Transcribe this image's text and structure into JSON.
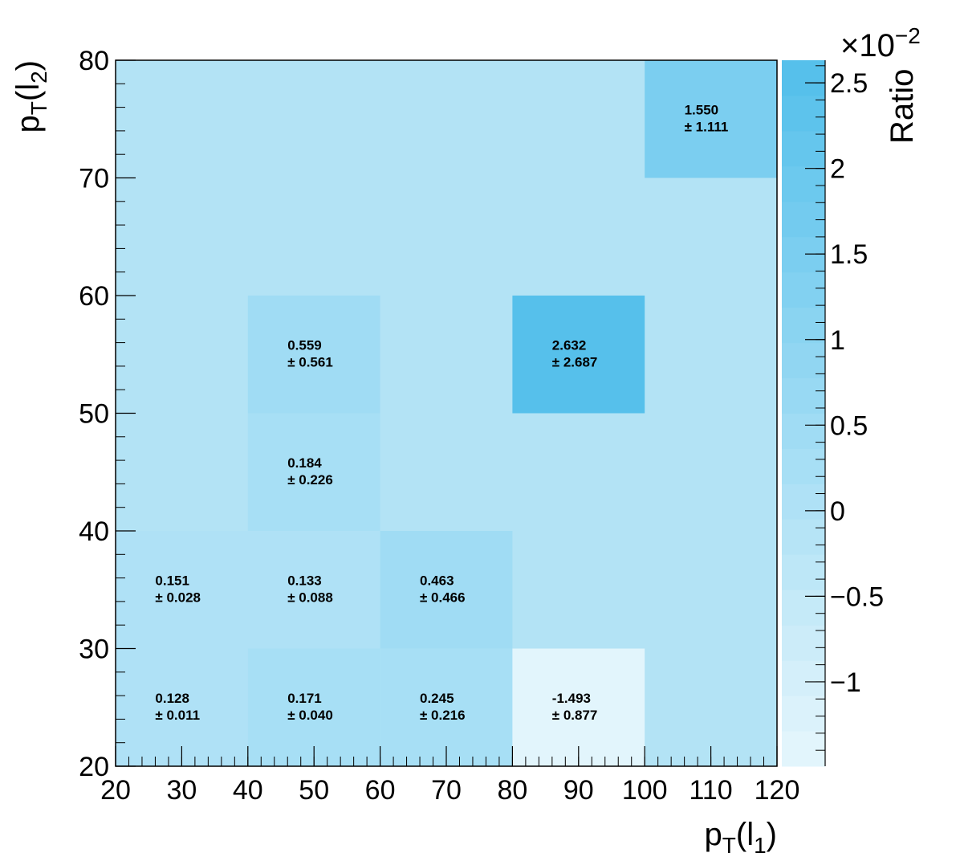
{
  "chart_data": {
    "type": "heatmap",
    "xlabel": {
      "base": "p",
      "sub": "T",
      "arg": "(l",
      "argsub": "1",
      "close": ")"
    },
    "ylabel": {
      "base": "p",
      "sub": "T",
      "arg": "(l",
      "argsub": "2",
      "close": ")"
    },
    "x_edges": [
      20,
      40,
      60,
      80,
      100,
      120
    ],
    "y_edges": [
      20,
      30,
      40,
      50,
      60,
      70,
      80
    ],
    "xlim": [
      20,
      120
    ],
    "ylim": [
      20,
      80
    ],
    "x_ticks": [
      "20",
      "30",
      "40",
      "50",
      "60",
      "70",
      "80",
      "90",
      "100",
      "110",
      "120"
    ],
    "y_ticks": [
      "20",
      "30",
      "40",
      "50",
      "60",
      "70",
      "80"
    ],
    "default_fill": "#b3e3f5",
    "cells": [
      {
        "x": [
          20,
          40
        ],
        "y": [
          20,
          30
        ],
        "value": "0.128",
        "error": "± 0.011",
        "v": 0.128,
        "show": true
      },
      {
        "x": [
          40,
          60
        ],
        "y": [
          20,
          30
        ],
        "value": "0.171",
        "error": "± 0.040",
        "v": 0.171,
        "show": true
      },
      {
        "x": [
          60,
          80
        ],
        "y": [
          20,
          30
        ],
        "value": "0.245",
        "error": "± 0.216",
        "v": 0.245,
        "show": true
      },
      {
        "x": [
          80,
          100
        ],
        "y": [
          20,
          30
        ],
        "value": "-1.493",
        "error": "± 0.877",
        "v": -1.493,
        "show": true
      },
      {
        "x": [
          20,
          40
        ],
        "y": [
          30,
          40
        ],
        "value": "0.151",
        "error": "± 0.028",
        "v": 0.151,
        "show": true
      },
      {
        "x": [
          40,
          60
        ],
        "y": [
          30,
          40
        ],
        "value": "0.133",
        "error": "± 0.088",
        "v": 0.133,
        "show": true
      },
      {
        "x": [
          60,
          80
        ],
        "y": [
          30,
          40
        ],
        "value": "0.463",
        "error": "± 0.466",
        "v": 0.463,
        "show": true
      },
      {
        "x": [
          40,
          60
        ],
        "y": [
          40,
          50
        ],
        "value": "0.184",
        "error": "± 0.226",
        "v": 0.184,
        "show": true
      },
      {
        "x": [
          40,
          60
        ],
        "y": [
          50,
          60
        ],
        "value": "0.559",
        "error": "± 0.561",
        "v": 0.559,
        "show": true
      },
      {
        "x": [
          80,
          100
        ],
        "y": [
          50,
          60
        ],
        "value": "2.632",
        "error": "± 2.687",
        "v": 2.632,
        "show": true
      },
      {
        "x": [
          100,
          120
        ],
        "y": [
          70,
          80
        ],
        "value": "1.550",
        "error": "± 1.111",
        "v": 1.55,
        "show": true
      }
    ],
    "colorbar": {
      "title": "Ratio",
      "multiplier_base": "×10",
      "multiplier_exp": "−2",
      "zmin": -1.493,
      "zmax": 2.632,
      "ticks": [
        {
          "value": -1,
          "label": "−1"
        },
        {
          "value": -0.5,
          "label": "−0.5"
        },
        {
          "value": 0,
          "label": "0"
        },
        {
          "value": 0.5,
          "label": "0.5"
        },
        {
          "value": 1,
          "label": "1"
        },
        {
          "value": 1.5,
          "label": "1.5"
        },
        {
          "value": 2,
          "label": "2"
        },
        {
          "value": 2.5,
          "label": "2.5"
        }
      ],
      "color_low": "#e6f6fc",
      "color_high": "#52bfeb",
      "levels": 20
    }
  }
}
